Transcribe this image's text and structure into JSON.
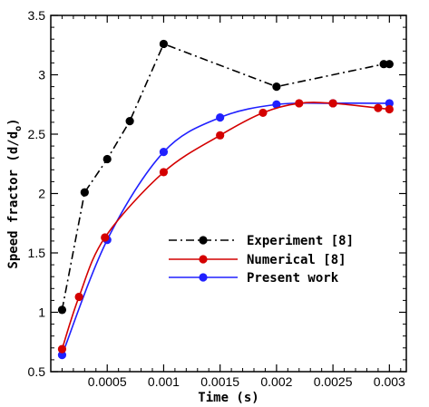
{
  "chart_data": {
    "type": "line",
    "xlabel": "Time (s)",
    "ylabel": "Speed fractor (d/d",
    "ylabel_sub": "o",
    "ylabel_close": ")",
    "xlim": [
      0,
      0.00315
    ],
    "ylim": [
      0.5,
      3.5
    ],
    "xticks": [
      0.0005,
      0.001,
      0.0015,
      0.002,
      0.0025,
      0.003
    ],
    "xtick_labels": [
      "0.0005",
      "0.001",
      "0.0015",
      "0.002",
      "0.0025",
      "0.003"
    ],
    "yticks": [
      0.5,
      1,
      1.5,
      2,
      2.5,
      3,
      3.5
    ],
    "ytick_labels": [
      "0.5",
      "1",
      "1.5",
      "2",
      "2.5",
      "3",
      "3.5"
    ],
    "grid": false,
    "legend_position": "center-right",
    "series": [
      {
        "name": "Experiment [8]",
        "color": "#000000",
        "line_style": "dashdot",
        "smooth": false,
        "points": [
          [
            0.0001,
            1.02
          ],
          [
            0.0003,
            2.01
          ],
          [
            0.0005,
            2.29
          ],
          [
            0.0007,
            2.61
          ],
          [
            0.001,
            3.26
          ],
          [
            0.002,
            2.9
          ],
          [
            0.00295,
            3.09
          ],
          [
            0.003,
            3.09
          ]
        ]
      },
      {
        "name": "Numerical [8]",
        "color": "#d40000",
        "line_style": "solid",
        "smooth": true,
        "points": [
          [
            0.0001,
            0.69
          ],
          [
            0.00025,
            1.13
          ],
          [
            0.00048,
            1.63
          ],
          [
            0.001,
            2.18
          ],
          [
            0.0015,
            2.49
          ],
          [
            0.00188,
            2.68
          ],
          [
            0.0022,
            2.76
          ],
          [
            0.0025,
            2.76
          ],
          [
            0.0029,
            2.72
          ],
          [
            0.003,
            2.71
          ]
        ]
      },
      {
        "name": "Present work",
        "color": "#2020ff",
        "line_style": "solid",
        "smooth": true,
        "points": [
          [
            0.0001,
            0.64
          ],
          [
            0.0005,
            1.61
          ],
          [
            0.001,
            2.35
          ],
          [
            0.0015,
            2.64
          ],
          [
            0.002,
            2.75
          ],
          [
            0.0025,
            2.76
          ],
          [
            0.003,
            2.76
          ]
        ]
      }
    ]
  }
}
